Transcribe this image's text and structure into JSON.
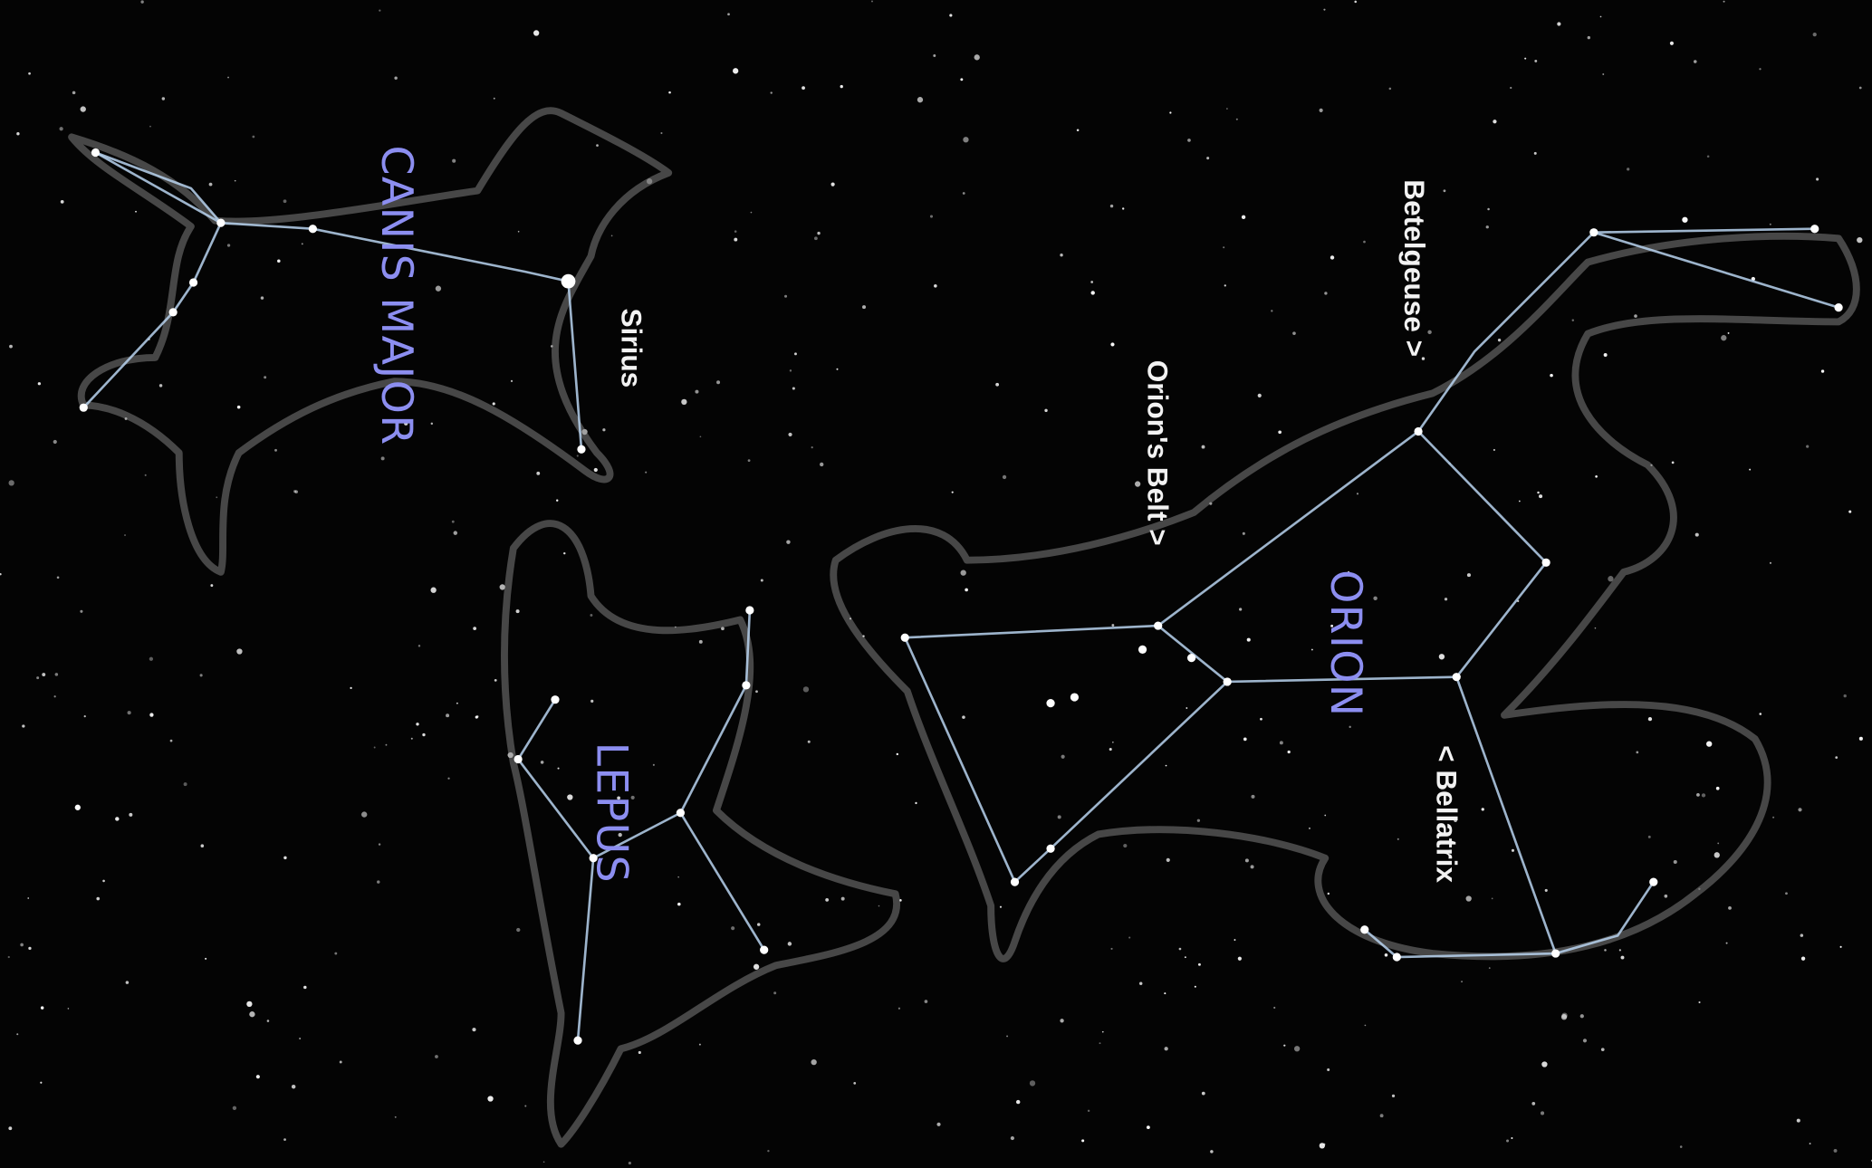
{
  "constellations": [
    {
      "name": "CANIS MAJOR"
    },
    {
      "name": "LEPUS"
    },
    {
      "name": "ORION"
    }
  ],
  "stars": [
    {
      "name": "Sirius"
    },
    {
      "name": "Orion's Belt >"
    },
    {
      "name": "Betelgeuse >"
    },
    {
      "name": "< Bellatrix"
    }
  ]
}
